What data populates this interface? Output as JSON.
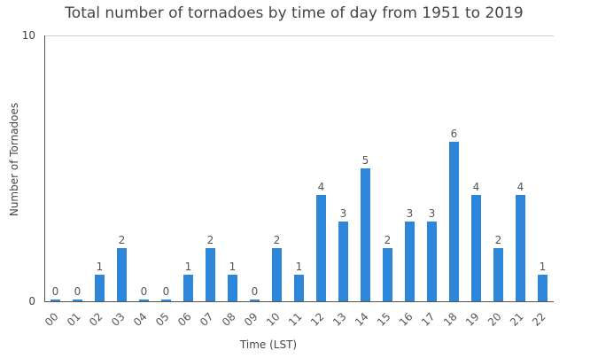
{
  "chart_data": {
    "type": "bar",
    "title": "Total number of tornadoes by time of day from 1951 to 2019",
    "xlabel": "Time (LST)",
    "ylabel": "Number of Tornadoes",
    "ylim": [
      0,
      10
    ],
    "yticks": [
      "0",
      "10"
    ],
    "grid": true,
    "bar_color": "#2e86d9",
    "categories": [
      "00",
      "01",
      "02",
      "03",
      "04",
      "05",
      "06",
      "07",
      "08",
      "09",
      "10",
      "11",
      "12",
      "13",
      "14",
      "15",
      "16",
      "17",
      "18",
      "19",
      "20",
      "21",
      "22"
    ],
    "values": [
      0,
      0,
      1,
      2,
      0,
      0,
      1,
      2,
      1,
      0,
      2,
      1,
      4,
      3,
      5,
      2,
      3,
      3,
      6,
      4,
      2,
      4,
      1
    ]
  }
}
